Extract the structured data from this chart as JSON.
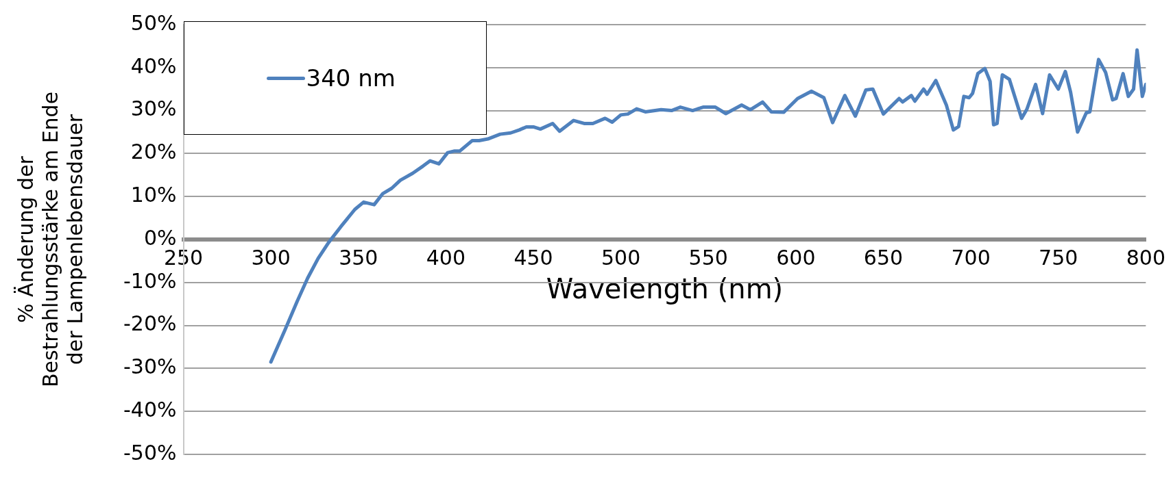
{
  "chart_data": {
    "type": "line",
    "xlabel": "Wavelength (nm)",
    "ylabel": "% Änderung der Bestrahlungsstärke am Ende der Lampenlebensdauer",
    "xlim": [
      250,
      800
    ],
    "xticks": [
      250,
      300,
      350,
      400,
      450,
      500,
      550,
      600,
      650,
      700,
      750,
      800
    ],
    "ylim": [
      -50,
      50
    ],
    "yticks": [
      {
        "value": -50,
        "label": "-50%"
      },
      {
        "value": -40,
        "label": "-40%"
      },
      {
        "value": -30,
        "label": "-30%"
      },
      {
        "value": -20,
        "label": "-20%"
      },
      {
        "value": -10,
        "label": "-10%"
      },
      {
        "value": 0,
        "label": "0%"
      },
      {
        "value": 10,
        "label": "10%"
      },
      {
        "value": 20,
        "label": "20%"
      },
      {
        "value": 30,
        "label": "30%"
      },
      {
        "value": 40,
        "label": "40%"
      },
      {
        "value": 50,
        "label": "50%"
      }
    ],
    "grid": "y",
    "legend": "top left",
    "marker": "none",
    "line_style": "solid",
    "x": [
      300,
      308,
      315,
      321,
      327,
      333,
      340,
      348,
      353,
      359,
      364,
      369,
      374,
      381,
      387,
      391,
      396,
      401,
      405,
      408,
      415,
      419,
      424,
      431,
      437,
      442,
      446,
      450,
      454,
      461,
      465,
      473,
      479,
      484,
      491,
      495,
      500,
      504,
      509,
      514,
      523,
      529,
      534,
      541,
      547,
      554,
      560,
      569,
      574,
      581,
      586,
      593,
      601,
      609,
      616,
      621,
      628,
      634,
      640,
      644,
      650,
      659,
      661,
      666,
      668,
      673,
      675,
      680,
      686,
      690,
      693,
      696,
      699,
      701,
      704,
      708,
      711,
      713,
      715,
      718,
      722,
      729,
      732,
      737,
      741,
      745,
      750,
      754,
      757,
      761,
      766,
      768,
      773,
      777,
      781,
      783,
      787,
      790,
      793,
      795,
      798,
      800
    ],
    "series": [
      {
        "name": "340 nm",
        "color": "#4f81bd",
        "values": [
          -28.5,
          -21.1,
          -14.4,
          -9,
          -4.4,
          -0.7,
          3,
          7,
          8.7,
          8.1,
          10.7,
          11.9,
          13.8,
          15.4,
          17.1,
          18.3,
          17.6,
          20.2,
          20.6,
          20.6,
          23,
          23,
          23.4,
          24.5,
          24.8,
          25.5,
          26.2,
          26.2,
          25.7,
          27,
          25.2,
          27.7,
          27,
          27,
          28.2,
          27.3,
          29,
          29.2,
          30.4,
          29.7,
          30.2,
          30,
          30.8,
          30,
          30.8,
          30.8,
          29.3,
          31.3,
          30.2,
          32,
          29.7,
          29.6,
          32.8,
          34.5,
          33,
          27.2,
          33.5,
          28.7,
          34.8,
          35,
          29.2,
          32.8,
          32,
          33.5,
          32.2,
          35,
          33.8,
          37,
          31.3,
          25.5,
          26.3,
          33.3,
          33,
          34,
          38.6,
          39.8,
          36.8,
          26.7,
          27,
          38.3,
          37.3,
          28.2,
          30.3,
          36.1,
          29.3,
          38.3,
          35,
          39.1,
          34.3,
          25,
          29.5,
          29.7,
          41.9,
          38.9,
          32.5,
          32.8,
          38.6,
          33.3,
          35,
          44.1,
          33.3,
          36.1
        ]
      }
    ]
  }
}
